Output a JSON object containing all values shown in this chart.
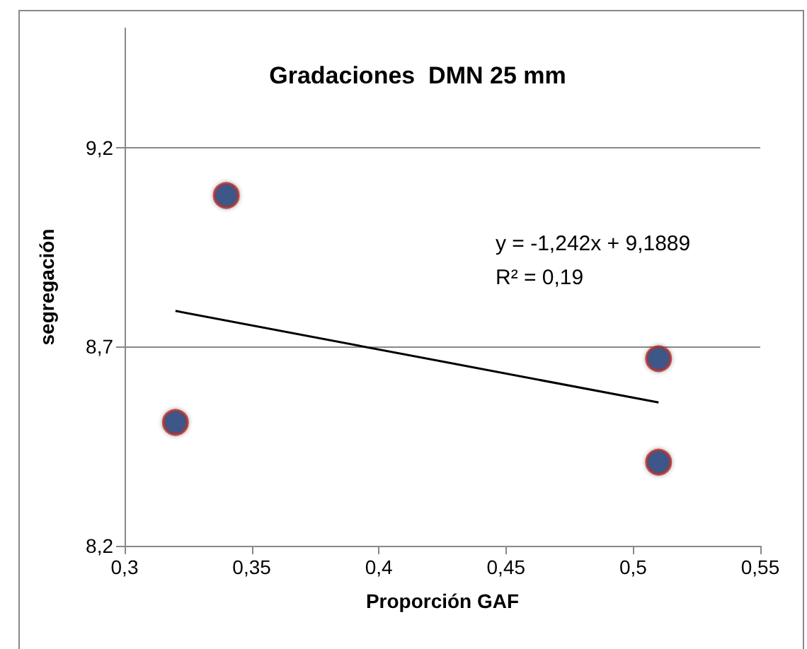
{
  "chart_data": {
    "type": "scatter",
    "title": "Gradaciones  DMN 25 mm",
    "xlabel": "Proporción GAF",
    "ylabel": "segregación",
    "annotations": [
      "y = -1,242x + 9,1889",
      "R² = 0,19"
    ],
    "series": [
      {
        "color": "#1f3f7a",
        "x": [
          0.32,
          0.34,
          0.51,
          0.51
        ],
        "values": [
          8.51,
          9.08,
          8.67,
          8.41
        ],
        "marker": "circle"
      },
      {
        "type": "line",
        "color": "#000000",
        "x": [
          0.32,
          0.51
        ],
        "values": [
          8.79,
          8.56
        ],
        "marker": "none",
        "line_style": "solid"
      }
    ],
    "xlim": [
      0.3,
      0.55
    ],
    "xticks": [
      {
        "value": 0.3,
        "label": "0,3"
      },
      {
        "value": 0.35,
        "label": "0,35"
      },
      {
        "value": 0.4,
        "label": "0,4"
      },
      {
        "value": 0.45,
        "label": "0,45"
      },
      {
        "value": 0.5,
        "label": "0,5"
      },
      {
        "value": 0.55,
        "label": "0,55"
      }
    ],
    "ylim": [
      8.2,
      9.5
    ],
    "yticks": [
      {
        "value": 8.2,
        "label": "8,2"
      },
      {
        "value": 8.7,
        "label": "8,7"
      },
      {
        "value": 9.2,
        "label": "9,2"
      }
    ],
    "grid": "y"
  }
}
